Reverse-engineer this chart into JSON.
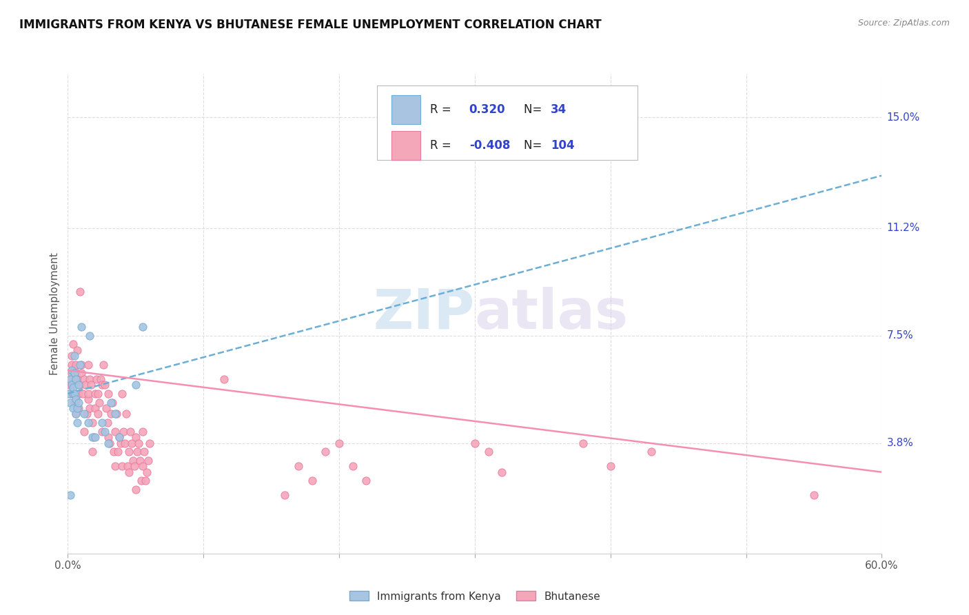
{
  "title": "IMMIGRANTS FROM KENYA VS BHUTANESE FEMALE UNEMPLOYMENT CORRELATION CHART",
  "source": "Source: ZipAtlas.com",
  "ylabel": "Female Unemployment",
  "xlim": [
    0.0,
    0.6
  ],
  "ylim": [
    0.0,
    0.165
  ],
  "yticks": [
    0.038,
    0.075,
    0.112,
    0.15
  ],
  "ytick_labels": [
    "3.8%",
    "7.5%",
    "11.2%",
    "15.0%"
  ],
  "xticks": [
    0.0,
    0.1,
    0.2,
    0.3,
    0.4,
    0.5,
    0.6
  ],
  "xtick_labels": [
    "0.0%",
    "",
    "",
    "",
    "",
    "",
    "60.0%"
  ],
  "kenya_color": "#a8c4e0",
  "kenya_edge": "#6baed6",
  "bhutan_color": "#f4a7b9",
  "bhutan_edge": "#e879a0",
  "trend_blue": "#6baed6",
  "trend_pink": "#f48fb1",
  "legend_val_color": "#3344cc",
  "watermark": "ZIPatlas",
  "bg": "#ffffff",
  "grid_color": "#dddddd",
  "kenya_trend": [
    0.0,
    0.055,
    0.6,
    0.13
  ],
  "bhutan_trend": [
    0.0,
    0.063,
    0.6,
    0.028
  ],
  "kenya_scatter": [
    [
      0.001,
      0.055
    ],
    [
      0.002,
      0.052
    ],
    [
      0.002,
      0.06
    ],
    [
      0.003,
      0.058
    ],
    [
      0.003,
      0.063
    ],
    [
      0.004,
      0.055
    ],
    [
      0.004,
      0.05
    ],
    [
      0.004,
      0.057
    ],
    [
      0.005,
      0.062
    ],
    [
      0.005,
      0.068
    ],
    [
      0.005,
      0.055
    ],
    [
      0.006,
      0.06
    ],
    [
      0.006,
      0.053
    ],
    [
      0.006,
      0.048
    ],
    [
      0.007,
      0.05
    ],
    [
      0.007,
      0.045
    ],
    [
      0.008,
      0.058
    ],
    [
      0.008,
      0.052
    ],
    [
      0.009,
      0.065
    ],
    [
      0.01,
      0.078
    ],
    [
      0.012,
      0.048
    ],
    [
      0.015,
      0.045
    ],
    [
      0.016,
      0.075
    ],
    [
      0.018,
      0.04
    ],
    [
      0.02,
      0.04
    ],
    [
      0.025,
      0.045
    ],
    [
      0.027,
      0.042
    ],
    [
      0.03,
      0.038
    ],
    [
      0.032,
      0.052
    ],
    [
      0.035,
      0.048
    ],
    [
      0.038,
      0.04
    ],
    [
      0.05,
      0.058
    ],
    [
      0.055,
      0.078
    ],
    [
      0.002,
      0.02
    ]
  ],
  "bhutan_scatter": [
    [
      0.001,
      0.058
    ],
    [
      0.002,
      0.06
    ],
    [
      0.002,
      0.055
    ],
    [
      0.003,
      0.068
    ],
    [
      0.003,
      0.062
    ],
    [
      0.003,
      0.065
    ],
    [
      0.004,
      0.058
    ],
    [
      0.004,
      0.072
    ],
    [
      0.004,
      0.055
    ],
    [
      0.005,
      0.063
    ],
    [
      0.005,
      0.052
    ],
    [
      0.005,
      0.06
    ],
    [
      0.006,
      0.048
    ],
    [
      0.006,
      0.065
    ],
    [
      0.006,
      0.053
    ],
    [
      0.007,
      0.06
    ],
    [
      0.007,
      0.07
    ],
    [
      0.008,
      0.055
    ],
    [
      0.008,
      0.05
    ],
    [
      0.009,
      0.058
    ],
    [
      0.009,
      0.09
    ],
    [
      0.01,
      0.062
    ],
    [
      0.01,
      0.065
    ],
    [
      0.011,
      0.055
    ],
    [
      0.012,
      0.06
    ],
    [
      0.012,
      0.042
    ],
    [
      0.013,
      0.058
    ],
    [
      0.014,
      0.048
    ],
    [
      0.015,
      0.053
    ],
    [
      0.015,
      0.065
    ],
    [
      0.015,
      0.055
    ],
    [
      0.016,
      0.06
    ],
    [
      0.016,
      0.05
    ],
    [
      0.017,
      0.058
    ],
    [
      0.018,
      0.045
    ],
    [
      0.018,
      0.035
    ],
    [
      0.019,
      0.04
    ],
    [
      0.02,
      0.055
    ],
    [
      0.02,
      0.05
    ],
    [
      0.021,
      0.06
    ],
    [
      0.022,
      0.048
    ],
    [
      0.022,
      0.055
    ],
    [
      0.023,
      0.052
    ],
    [
      0.024,
      0.06
    ],
    [
      0.025,
      0.058
    ],
    [
      0.025,
      0.042
    ],
    [
      0.026,
      0.065
    ],
    [
      0.027,
      0.058
    ],
    [
      0.028,
      0.05
    ],
    [
      0.029,
      0.045
    ],
    [
      0.03,
      0.055
    ],
    [
      0.03,
      0.04
    ],
    [
      0.031,
      0.038
    ],
    [
      0.032,
      0.048
    ],
    [
      0.033,
      0.052
    ],
    [
      0.034,
      0.035
    ],
    [
      0.035,
      0.042
    ],
    [
      0.035,
      0.03
    ],
    [
      0.036,
      0.048
    ],
    [
      0.037,
      0.035
    ],
    [
      0.038,
      0.04
    ],
    [
      0.039,
      0.038
    ],
    [
      0.04,
      0.055
    ],
    [
      0.04,
      0.03
    ],
    [
      0.041,
      0.042
    ],
    [
      0.042,
      0.038
    ],
    [
      0.043,
      0.048
    ],
    [
      0.044,
      0.03
    ],
    [
      0.045,
      0.035
    ],
    [
      0.045,
      0.028
    ],
    [
      0.046,
      0.042
    ],
    [
      0.047,
      0.038
    ],
    [
      0.048,
      0.032
    ],
    [
      0.049,
      0.03
    ],
    [
      0.05,
      0.04
    ],
    [
      0.05,
      0.022
    ],
    [
      0.051,
      0.035
    ],
    [
      0.052,
      0.038
    ],
    [
      0.053,
      0.032
    ],
    [
      0.054,
      0.025
    ],
    [
      0.055,
      0.03
    ],
    [
      0.055,
      0.042
    ],
    [
      0.056,
      0.035
    ],
    [
      0.057,
      0.025
    ],
    [
      0.058,
      0.028
    ],
    [
      0.059,
      0.032
    ],
    [
      0.06,
      0.038
    ],
    [
      0.115,
      0.06
    ],
    [
      0.16,
      0.02
    ],
    [
      0.17,
      0.03
    ],
    [
      0.18,
      0.025
    ],
    [
      0.19,
      0.035
    ],
    [
      0.2,
      0.038
    ],
    [
      0.21,
      0.03
    ],
    [
      0.22,
      0.025
    ],
    [
      0.3,
      0.038
    ],
    [
      0.31,
      0.035
    ],
    [
      0.32,
      0.028
    ],
    [
      0.38,
      0.038
    ],
    [
      0.4,
      0.03
    ],
    [
      0.43,
      0.035
    ],
    [
      0.55,
      0.02
    ]
  ]
}
